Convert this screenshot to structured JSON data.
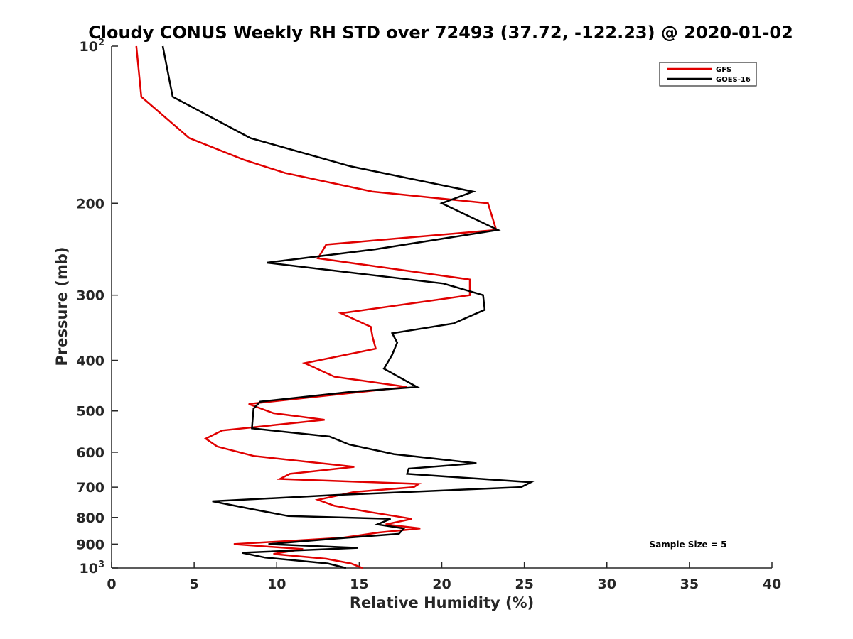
{
  "chart_data": {
    "type": "line",
    "title": "Cloudy CONUS Weekly RH STD over 72493 (37.72, -122.23) @ 2020-01-02",
    "xlabel": "Relative Humidity (%)",
    "ylabel": "Pressure (mb)",
    "xlim": [
      0,
      40
    ],
    "ylim": [
      100,
      1000
    ],
    "y_scale": "log",
    "y_reversed": true,
    "x_ticks": [
      "0",
      "5",
      "10",
      "15",
      "20",
      "25",
      "30",
      "35",
      "40"
    ],
    "y_ticks": [
      {
        "value": 100,
        "label": "10",
        "sup": "2"
      },
      {
        "value": 200,
        "label": "200",
        "sup": ""
      },
      {
        "value": 300,
        "label": "300",
        "sup": ""
      },
      {
        "value": 400,
        "label": "400",
        "sup": ""
      },
      {
        "value": 500,
        "label": "500",
        "sup": ""
      },
      {
        "value": 600,
        "label": "600",
        "sup": ""
      },
      {
        "value": 700,
        "label": "700",
        "sup": ""
      },
      {
        "value": 800,
        "label": "800",
        "sup": ""
      },
      {
        "value": 900,
        "label": "900",
        "sup": ""
      },
      {
        "value": 1000,
        "label": "10",
        "sup": "3"
      }
    ],
    "legend_position": "top-right",
    "grid": false,
    "annotation": "Sample Size = 5",
    "series": [
      {
        "name": "GFS",
        "color": "#e00000",
        "points": [
          [
            1.5,
            100
          ],
          [
            1.8,
            125
          ],
          [
            4.7,
            150
          ],
          [
            8.0,
            165
          ],
          [
            10.5,
            175
          ],
          [
            15.8,
            190
          ],
          [
            22.8,
            200
          ],
          [
            23.3,
            225
          ],
          [
            13.0,
            240
          ],
          [
            12.5,
            255
          ],
          [
            21.7,
            280
          ],
          [
            21.7,
            300
          ],
          [
            13.9,
            325
          ],
          [
            15.7,
            345
          ],
          [
            15.8,
            360
          ],
          [
            16.0,
            380
          ],
          [
            11.7,
            405
          ],
          [
            13.5,
            430
          ],
          [
            17.9,
            450
          ],
          [
            8.3,
            485
          ],
          [
            9.8,
            505
          ],
          [
            12.9,
            520
          ],
          [
            6.7,
            545
          ],
          [
            5.7,
            565
          ],
          [
            6.4,
            585
          ],
          [
            8.6,
            610
          ],
          [
            14.7,
            640
          ],
          [
            10.8,
            660
          ],
          [
            10.2,
            675
          ],
          [
            18.6,
            690
          ],
          [
            18.3,
            700
          ],
          [
            14.7,
            715
          ],
          [
            12.5,
            740
          ],
          [
            13.5,
            760
          ],
          [
            15.5,
            780
          ],
          [
            18.2,
            805
          ],
          [
            16.6,
            825
          ],
          [
            18.7,
            840
          ],
          [
            16.2,
            855
          ],
          [
            14.0,
            875
          ],
          [
            7.4,
            900
          ],
          [
            11.6,
            920
          ],
          [
            9.8,
            940
          ],
          [
            13.0,
            960
          ],
          [
            14.5,
            980
          ],
          [
            15.2,
            1000
          ]
        ]
      },
      {
        "name": "GOES-16",
        "color": "#000000",
        "points": [
          [
            3.1,
            100
          ],
          [
            3.7,
            125
          ],
          [
            8.4,
            150
          ],
          [
            14.5,
            170
          ],
          [
            21.9,
            190
          ],
          [
            20.0,
            200
          ],
          [
            23.4,
            225
          ],
          [
            16.0,
            245
          ],
          [
            9.4,
            260
          ],
          [
            20.1,
            285
          ],
          [
            22.5,
            300
          ],
          [
            22.6,
            320
          ],
          [
            20.7,
            340
          ],
          [
            17.0,
            355
          ],
          [
            17.3,
            370
          ],
          [
            17.0,
            390
          ],
          [
            16.5,
            415
          ],
          [
            18.5,
            450
          ],
          [
            14.4,
            460
          ],
          [
            9.0,
            480
          ],
          [
            8.6,
            495
          ],
          [
            8.5,
            540
          ],
          [
            13.2,
            560
          ],
          [
            14.4,
            580
          ],
          [
            17.1,
            605
          ],
          [
            22.1,
            630
          ],
          [
            18.0,
            645
          ],
          [
            17.9,
            660
          ],
          [
            25.4,
            685
          ],
          [
            24.8,
            700
          ],
          [
            13.5,
            725
          ],
          [
            6.1,
            745
          ],
          [
            8.4,
            770
          ],
          [
            10.7,
            795
          ],
          [
            16.9,
            805
          ],
          [
            16.1,
            825
          ],
          [
            17.7,
            840
          ],
          [
            17.4,
            860
          ],
          [
            13.2,
            880
          ],
          [
            9.5,
            900
          ],
          [
            14.9,
            915
          ],
          [
            7.9,
            935
          ],
          [
            9.3,
            955
          ],
          [
            13.1,
            980
          ],
          [
            14.2,
            1000
          ]
        ]
      }
    ]
  }
}
